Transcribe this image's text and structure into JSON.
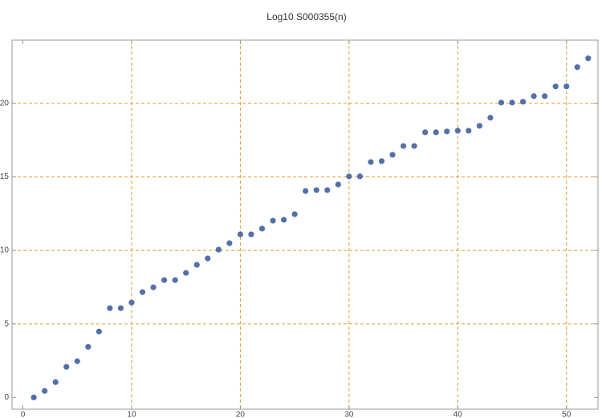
{
  "chart_data": {
    "type": "scatter",
    "title": "Log10 S000355(n)",
    "color": "#5470a8",
    "grid": true,
    "grid_color": "#e69a2e",
    "xlim": [
      -1,
      52.9
    ],
    "ylim": [
      -0.8,
      24.3
    ],
    "xticks": [
      0,
      10,
      20,
      30,
      40,
      50
    ],
    "yticks": [
      0,
      5,
      10,
      15,
      20
    ],
    "x": [
      1,
      2,
      3,
      4,
      5,
      6,
      7,
      8,
      9,
      10,
      11,
      12,
      13,
      14,
      15,
      16,
      17,
      18,
      19,
      20,
      21,
      22,
      23,
      24,
      25,
      26,
      27,
      28,
      29,
      30,
      31,
      32,
      33,
      34,
      35,
      36,
      37,
      38,
      39,
      40,
      41,
      42,
      43,
      44,
      45,
      46,
      47,
      48,
      49,
      50,
      51,
      52
    ],
    "values": [
      0,
      0.44,
      1.04,
      2.08,
      2.46,
      3.44,
      4.48,
      6.07,
      6.07,
      6.45,
      7.16,
      7.49,
      7.98,
      7.98,
      8.47,
      9.02,
      9.45,
      10.05,
      10.49,
      11.09,
      11.09,
      11.48,
      12.02,
      12.08,
      12.46,
      14.04,
      14.1,
      14.1,
      14.48,
      15.03,
      15.03,
      16.01,
      16.07,
      16.5,
      17.1,
      17.1,
      18.03,
      18.03,
      18.09,
      18.14,
      18.14,
      18.47,
      19.02,
      20.05,
      20.05,
      20.11,
      20.49,
      20.49,
      21.15,
      21.15,
      22.46,
      23.06
    ]
  }
}
